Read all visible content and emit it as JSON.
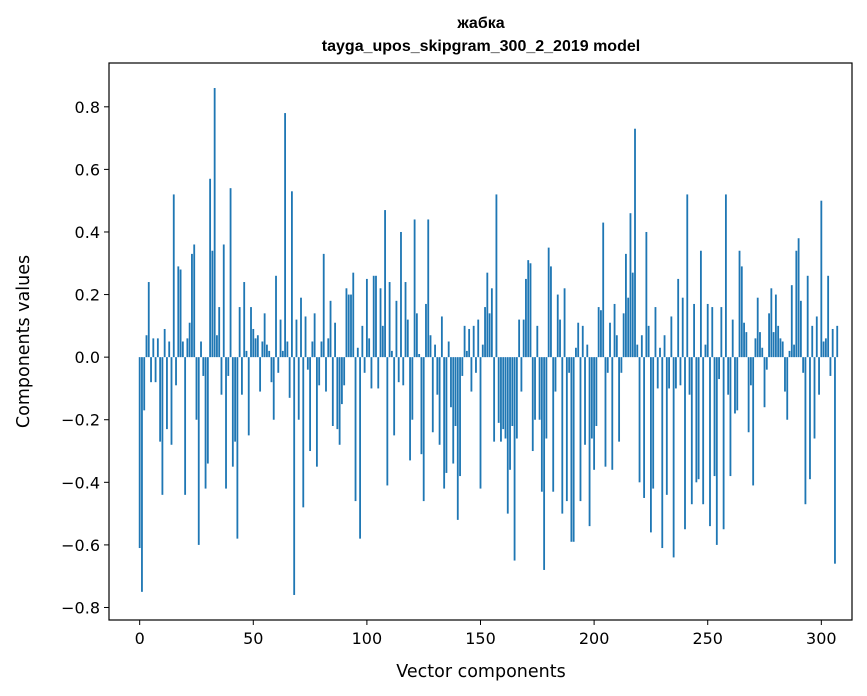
{
  "chart_data": {
    "type": "bar",
    "title": "жабка",
    "subtitle": "tayga_upos_skipgram_300_2_2019 model",
    "xlabel": "Vector components",
    "ylabel": "Components values",
    "xlim": [
      -13.5,
      313.5
    ],
    "ylim": [
      -0.84,
      0.94
    ],
    "xticks": [
      0,
      50,
      100,
      150,
      200,
      250,
      300
    ],
    "xtick_labels": [
      "0",
      "50",
      "100",
      "150",
      "200",
      "250",
      "300"
    ],
    "yticks": [
      -0.8,
      -0.6,
      -0.4,
      -0.2,
      0.0,
      0.2,
      0.4,
      0.6,
      0.8
    ],
    "ytick_labels": [
      "−0.8",
      "−0.6",
      "−0.4",
      "−0.2",
      "0.0",
      "0.2",
      "0.4",
      "0.6",
      "0.8"
    ],
    "grid": false,
    "bar_color": "#1f77b4",
    "values": [
      -0.61,
      -0.75,
      -0.17,
      0.07,
      0.24,
      -0.08,
      0.06,
      -0.08,
      0.06,
      -0.27,
      -0.44,
      0.09,
      -0.23,
      0.05,
      -0.28,
      0.52,
      -0.09,
      0.29,
      0.28,
      0.05,
      -0.44,
      0.06,
      0.11,
      0.33,
      0.36,
      -0.2,
      -0.6,
      0.05,
      -0.06,
      -0.42,
      -0.34,
      0.57,
      0.34,
      0.86,
      0.07,
      0.16,
      -0.12,
      0.36,
      -0.42,
      -0.06,
      0.54,
      -0.35,
      -0.27,
      -0.58,
      0.16,
      -0.12,
      0.24,
      0.02,
      -0.25,
      0.16,
      0.09,
      0.06,
      0.07,
      -0.11,
      0.05,
      0.14,
      0.04,
      0.02,
      -0.08,
      -0.2,
      0.26,
      -0.05,
      0.12,
      0.02,
      0.78,
      0.05,
      -0.13,
      0.53,
      -0.76,
      0.12,
      -0.2,
      0.19,
      -0.48,
      0.13,
      -0.04,
      -0.3,
      0.05,
      0.14,
      -0.35,
      -0.09,
      0.05,
      0.33,
      -0.11,
      0.06,
      0.18,
      -0.22,
      0.11,
      -0.23,
      -0.28,
      -0.15,
      -0.09,
      0.22,
      0.2,
      0.2,
      0.27,
      -0.46,
      0.03,
      -0.58,
      0.1,
      -0.05,
      0.25,
      0.06,
      -0.1,
      0.26,
      0.26,
      -0.1,
      0.22,
      0.1,
      0.47,
      -0.41,
      0.24,
      0.02,
      -0.25,
      0.18,
      -0.08,
      0.4,
      -0.09,
      0.24,
      0.12,
      -0.33,
      -0.2,
      0.44,
      0.14,
      0.01,
      -0.31,
      -0.46,
      0.17,
      0.44,
      0.07,
      -0.24,
      0.04,
      -0.12,
      -0.28,
      0.13,
      -0.42,
      -0.37,
      0.05,
      -0.16,
      -0.34,
      -0.22,
      -0.52,
      -0.38,
      -0.06,
      0.1,
      0.02,
      0.09,
      -0.11,
      0.1,
      -0.05,
      0.12,
      -0.42,
      0.04,
      0.16,
      0.27,
      0.14,
      0.22,
      -0.27,
      0.52,
      -0.21,
      -0.27,
      -0.23,
      -0.26,
      -0.5,
      -0.36,
      -0.22,
      -0.65,
      -0.26,
      0.12,
      -0.11,
      0.12,
      0.25,
      0.31,
      0.3,
      -0.3,
      -0.2,
      0.1,
      -0.2,
      -0.43,
      -0.68,
      -0.26,
      0.35,
      0.29,
      -0.43,
      -0.11,
      0.2,
      0.12,
      -0.5,
      0.22,
      -0.46,
      -0.05,
      -0.59,
      -0.59,
      0.03,
      0.11,
      -0.46,
      0.1,
      -0.28,
      0.04,
      -0.54,
      -0.26,
      -0.36,
      -0.22,
      0.16,
      0.15,
      0.43,
      -0.35,
      -0.05,
      0.11,
      -0.36,
      0.17,
      0.07,
      -0.27,
      -0.05,
      0.14,
      0.33,
      0.19,
      0.46,
      0.27,
      0.73,
      0.04,
      -0.4,
      0.07,
      -0.45,
      0.4,
      0.1,
      -0.56,
      -0.42,
      0.16,
      -0.1,
      0.03,
      -0.61,
      0.07,
      -0.44,
      -0.1,
      0.13,
      -0.64,
      -0.1,
      0.25,
      -0.09,
      0.19,
      -0.55,
      0.52,
      -0.12,
      -0.47,
      0.17,
      -0.4,
      -0.39,
      0.34,
      -0.47,
      0.04,
      0.17,
      -0.54,
      0.16,
      -0.38,
      -0.6,
      -0.07,
      0.16,
      -0.55,
      0.52,
      -0.12,
      -0.38,
      0.12,
      -0.18,
      -0.17,
      0.34,
      0.29,
      0.11,
      0.08,
      -0.24,
      -0.09,
      -0.41,
      0.06,
      0.19,
      0.08,
      0.03,
      -0.16,
      -0.04,
      0.14,
      0.22,
      0.08,
      0.2,
      0.1,
      0.06,
      0.05,
      -0.11,
      -0.2,
      0.02,
      0.23,
      0.04,
      0.34,
      0.38,
      0.18,
      -0.05,
      -0.47,
      0.26,
      -0.39,
      0.1,
      -0.26,
      0.13,
      -0.12,
      0.5,
      0.05,
      0.06,
      0.26,
      -0.06,
      0.09,
      -0.66,
      0.1
    ]
  }
}
